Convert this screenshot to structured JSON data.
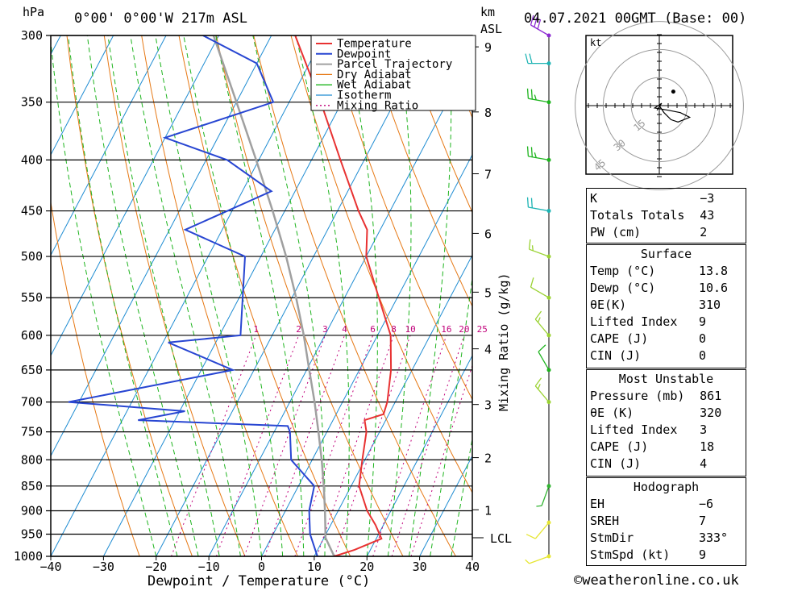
{
  "header": {
    "pressure_unit": "hPa",
    "location": "0°00' 0°00'W 217m ASL",
    "height_unit": "km",
    "height_unit2": "ASL",
    "datetime": "04.07.2021 00GMT (Base: 00)"
  },
  "chart_data": {
    "type": "skew-t",
    "xlabel": "Dewpoint / Temperature (°C)",
    "ylabel_right": "Mixing Ratio (g/kg)",
    "x_ticks": [
      -40,
      -30,
      -20,
      -10,
      0,
      10,
      20,
      30,
      40
    ],
    "x_tick_labels": [
      "−40",
      "−30",
      "−20",
      "−10",
      "0",
      "10",
      "20",
      "30",
      "40"
    ],
    "p_levels": [
      300,
      350,
      400,
      450,
      500,
      550,
      600,
      650,
      700,
      750,
      800,
      850,
      900,
      950,
      1000
    ],
    "km_ticks": [
      {
        "km": 1,
        "p": 898
      },
      {
        "km": 2,
        "p": 796
      },
      {
        "km": 3,
        "p": 704
      },
      {
        "km": 4,
        "p": 619
      },
      {
        "km": 5,
        "p": 543
      },
      {
        "km": 6,
        "p": 474
      },
      {
        "km": 7,
        "p": 413
      },
      {
        "km": 8,
        "p": 358
      },
      {
        "km": 9,
        "p": 308
      }
    ],
    "lcl": {
      "label": "LCL",
      "p": 958
    },
    "legend": [
      "Temperature",
      "Dewpoint",
      "Parcel Trajectory",
      "Dry Adiabat",
      "Wet Adiabat",
      "Isotherm",
      "Mixing Ratio"
    ],
    "colors": {
      "temperature": "#e83232",
      "dewpoint": "#2846d2",
      "parcel": "#a0a0a0",
      "dry_adiabat": "#e67814",
      "wet_adiabat": "#1eb41e",
      "isotherm": "#1e8cd2",
      "mixing_ratio": "#c0007a"
    },
    "mixing_ratios": [
      1,
      2,
      3,
      4,
      6,
      8,
      10,
      16,
      20,
      25
    ],
    "temperature": [
      {
        "p": 1000,
        "t": 13.8
      },
      {
        "p": 985,
        "t": 17.0
      },
      {
        "p": 960,
        "t": 21.0
      },
      {
        "p": 930,
        "t": 18.5
      },
      {
        "p": 900,
        "t": 15.5
      },
      {
        "p": 850,
        "t": 11.5
      },
      {
        "p": 800,
        "t": 9.5
      },
      {
        "p": 750,
        "t": 7.5
      },
      {
        "p": 730,
        "t": 6.0
      },
      {
        "p": 720,
        "t": 9.0
      },
      {
        "p": 700,
        "t": 8.5
      },
      {
        "p": 650,
        "t": 6.0
      },
      {
        "p": 600,
        "t": 2.5
      },
      {
        "p": 550,
        "t": -3.5
      },
      {
        "p": 500,
        "t": -10.0
      },
      {
        "p": 470,
        "t": -12.5
      },
      {
        "p": 450,
        "t": -16.0
      },
      {
        "p": 400,
        "t": -24.5
      },
      {
        "p": 350,
        "t": -34.0
      },
      {
        "p": 300,
        "t": -45.5
      }
    ],
    "dewpoint": [
      {
        "p": 1000,
        "t": 10.6
      },
      {
        "p": 950,
        "t": 7.0
      },
      {
        "p": 900,
        "t": 4.5
      },
      {
        "p": 850,
        "t": 3.0
      },
      {
        "p": 800,
        "t": -4.0
      },
      {
        "p": 750,
        "t": -7.0
      },
      {
        "p": 740,
        "t": -8.0
      },
      {
        "p": 730,
        "t": -37.0
      },
      {
        "p": 715,
        "t": -29.0
      },
      {
        "p": 700,
        "t": -52.0
      },
      {
        "p": 650,
        "t": -24.0
      },
      {
        "p": 610,
        "t": -39.0
      },
      {
        "p": 600,
        "t": -26.0
      },
      {
        "p": 500,
        "t": -33.0
      },
      {
        "p": 470,
        "t": -47.0
      },
      {
        "p": 430,
        "t": -34.5
      },
      {
        "p": 400,
        "t": -46.0
      },
      {
        "p": 380,
        "t": -60.0
      },
      {
        "p": 350,
        "t": -43.0
      },
      {
        "p": 320,
        "t": -50.0
      },
      {
        "p": 300,
        "t": -63.0
      }
    ],
    "parcel": [
      {
        "p": 1000,
        "t": 13.8
      },
      {
        "p": 958,
        "t": 10.3
      },
      {
        "p": 900,
        "t": 7.5
      },
      {
        "p": 850,
        "t": 4.8
      },
      {
        "p": 800,
        "t": 1.8
      },
      {
        "p": 750,
        "t": -1.6
      },
      {
        "p": 700,
        "t": -5.3
      },
      {
        "p": 650,
        "t": -9.5
      },
      {
        "p": 600,
        "t": -14.0
      },
      {
        "p": 550,
        "t": -19.2
      },
      {
        "p": 500,
        "t": -25.2
      },
      {
        "p": 450,
        "t": -32.3
      },
      {
        "p": 400,
        "t": -40.5
      },
      {
        "p": 350,
        "t": -50.0
      },
      {
        "p": 300,
        "t": -61.0
      }
    ],
    "wind_barbs": [
      {
        "p": 1000,
        "dir": 250,
        "spd": 5,
        "color": "#e6e632"
      },
      {
        "p": 925,
        "dir": 220,
        "spd": 10,
        "color": "#e6e632"
      },
      {
        "p": 850,
        "dir": 200,
        "spd": 5,
        "color": "#32b432"
      },
      {
        "p": 700,
        "dir": 320,
        "spd": 15,
        "color": "#9ad232"
      },
      {
        "p": 650,
        "dir": 330,
        "spd": 10,
        "color": "#1eb41e"
      },
      {
        "p": 600,
        "dir": 320,
        "spd": 15,
        "color": "#9ad232"
      },
      {
        "p": 550,
        "dir": 300,
        "spd": 10,
        "color": "#9ad232"
      },
      {
        "p": 500,
        "dir": 290,
        "spd": 15,
        "color": "#9ad232"
      },
      {
        "p": 450,
        "dir": 280,
        "spd": 20,
        "color": "#1eb4b4"
      },
      {
        "p": 400,
        "dir": 280,
        "spd": 25,
        "color": "#1eb41e"
      },
      {
        "p": 350,
        "dir": 280,
        "spd": 25,
        "color": "#1eb41e"
      },
      {
        "p": 320,
        "dir": 270,
        "spd": 20,
        "color": "#1eb4b4"
      },
      {
        "p": 300,
        "dir": 300,
        "spd": 30,
        "color": "#8c2ad2"
      }
    ],
    "hodograph": {
      "unit_label": "kt",
      "rings": [
        15,
        30,
        45
      ],
      "ring_labels": [
        "15",
        "30",
        "45"
      ],
      "trace_uv": [
        [
          0,
          0
        ],
        [
          2,
          -3
        ],
        [
          5,
          -6
        ],
        [
          8,
          -7
        ],
        [
          13,
          -5
        ],
        [
          9,
          -3
        ],
        [
          4,
          -2
        ],
        [
          -2,
          -1
        ],
        [
          1,
          1
        ],
        [
          -1,
          -2
        ]
      ],
      "marker_uv": [
        6,
        6
      ]
    }
  },
  "indices": [
    {
      "k": "K",
      "v": "−3"
    },
    {
      "k": "Totals Totals",
      "v": "43"
    },
    {
      "k": "PW (cm)",
      "v": "2"
    }
  ],
  "surface": {
    "title": "Surface",
    "rows": [
      {
        "k": "Temp (°C)",
        "v": "13.8"
      },
      {
        "k": "Dewp (°C)",
        "v": "10.6"
      },
      {
        "k": "θE(K)",
        "v": "310"
      },
      {
        "k": "Lifted Index",
        "v": "9"
      },
      {
        "k": "CAPE (J)",
        "v": "0"
      },
      {
        "k": "CIN (J)",
        "v": "0"
      }
    ]
  },
  "most_unstable": {
    "title": "Most Unstable",
    "rows": [
      {
        "k": "Pressure (mb)",
        "v": "861"
      },
      {
        "k": "θE (K)",
        "v": "320"
      },
      {
        "k": "Lifted Index",
        "v": "3"
      },
      {
        "k": "CAPE (J)",
        "v": "18"
      },
      {
        "k": "CIN (J)",
        "v": "4"
      }
    ]
  },
  "hodograph_box": {
    "title": "Hodograph",
    "rows": [
      {
        "k": "EH",
        "v": "−6"
      },
      {
        "k": "SREH",
        "v": "7"
      },
      {
        "k": "StmDir",
        "v": "333°"
      },
      {
        "k": "StmSpd (kt)",
        "v": "9"
      }
    ]
  },
  "credit": "©weatheronline.co.uk"
}
